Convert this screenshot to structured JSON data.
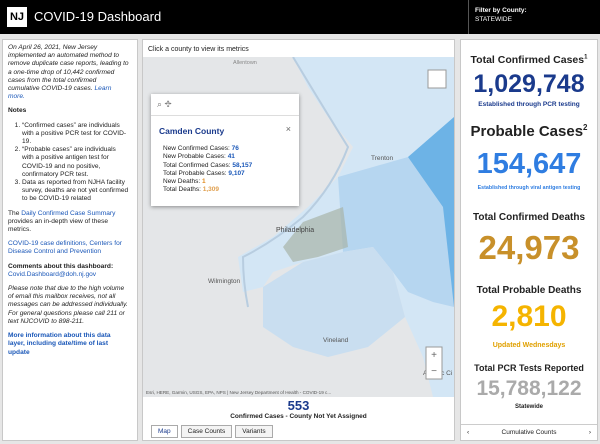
{
  "header": {
    "title": "COVID-19 Dashboard",
    "filter_label": "Filter by County:",
    "filter_value": "STATEWIDE"
  },
  "sidebar": {
    "intro": "On April 26, 2021, New Jersey implemented an automated method to remove duplicate case reports, leading to a one-time drop of 10,442 confirmed cases from the total confirmed cumulative COVID-19 cases.",
    "intro_link": "Learn more.",
    "notes_title": "Notes",
    "notes": [
      "“Confirmed cases” are individuals with a positive PCR test for COVID-19.",
      "“Probable cases” are individuals with a positive antigen test for COVID-19 and no positive, confirmatory PCR test.",
      "Data as reported from NJHA facility survey, deaths are not yet confirmed to be COVID-19 related"
    ],
    "summary_intro": "The",
    "summary_link": "Daily Confirmed Case Summary",
    "summary_text": "provides an in-depth view of these metrics.",
    "definitions_link": "COVID-19 case definitions, Centers for Disease Control and Prevention",
    "comments_title": "Comments about this dashboard:",
    "comments_email": "Covid.Dashboard@doh.nj.gov",
    "disclaimer": "Please note that due to the high volume of email this mailbox receives, not all messages can be addressed individually. For general questions please call 211 or text NJCOVID to 898-211.",
    "more_info": "More information about this data layer, including date/time of last update"
  },
  "map": {
    "instruction": "Click a county to view its metrics",
    "places": [
      "Allentown",
      "Trenton",
      "Philadelphia",
      "Wilmington",
      "Vineland",
      "Atlantic Ci"
    ],
    "attribution": "Esri, HERE, Garmin, USGS, EPA, NPS | New Jersey Department of Health - COVID-19 c...",
    "popup": {
      "title": "Camden County",
      "rows": [
        {
          "label": "New Confirmed Cases:",
          "value": "76"
        },
        {
          "label": "New Probable Cases:",
          "value": "41"
        },
        {
          "label": "Total Confirmed Cases:",
          "value": "58,157"
        },
        {
          "label": "Total Probable Cases:",
          "value": "9,107"
        },
        {
          "label": "New Deaths:",
          "value": "1"
        },
        {
          "label": "Total Deaths:",
          "value": "1,309"
        }
      ]
    },
    "unassigned_value": "553",
    "unassigned_label": "Confirmed Cases - County Not Yet Assigned",
    "tabs": [
      "Map",
      "Case Counts",
      "Variants"
    ]
  },
  "stats": [
    {
      "label": "Total Confirmed Cases",
      "sup": "1",
      "value": "1,029,748",
      "note": "Established through PCR testing"
    },
    {
      "label": "Probable Cases",
      "sup": "2",
      "value": "154,647",
      "note": "Established through viral antigen testing"
    },
    {
      "label": "Total Confirmed Deaths",
      "value": "24,973"
    },
    {
      "label": "Total Probable Deaths",
      "value": "2,810",
      "note": "Updated Wednesdays"
    },
    {
      "label": "Total PCR Tests Reported",
      "value": "15,788,122",
      "note": "Statewide"
    }
  ],
  "footer": {
    "panel_label": "Cumulative Counts"
  }
}
